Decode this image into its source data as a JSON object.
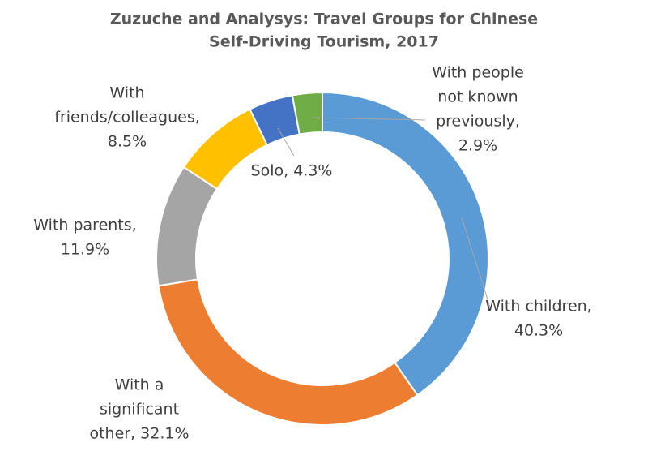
{
  "chart_data": {
    "type": "donut",
    "title": [
      "Zuzuche and Analysys: Travel Groups for Chinese",
      "Self-Driving Tourism, 2017"
    ],
    "values": [
      40.3,
      32.1,
      11.9,
      8.5,
      4.3,
      2.9
    ],
    "value_labels": [
      [
        "With children,",
        "40.3%"
      ],
      [
        "With a",
        "significant",
        "other, 32.1%"
      ],
      [
        "With parents,",
        "11.9%"
      ],
      [
        "With",
        "friends/colleagues,",
        "8.5%"
      ],
      [
        "Solo, 4.3%"
      ],
      [
        "With people",
        "not known",
        "previously,",
        "2.9%"
      ]
    ],
    "colors": [
      "#5b9bd5",
      "#ed7d31",
      "#a5a5a5",
      "#ffc000",
      "#4472c4",
      "#70ad47"
    ]
  }
}
